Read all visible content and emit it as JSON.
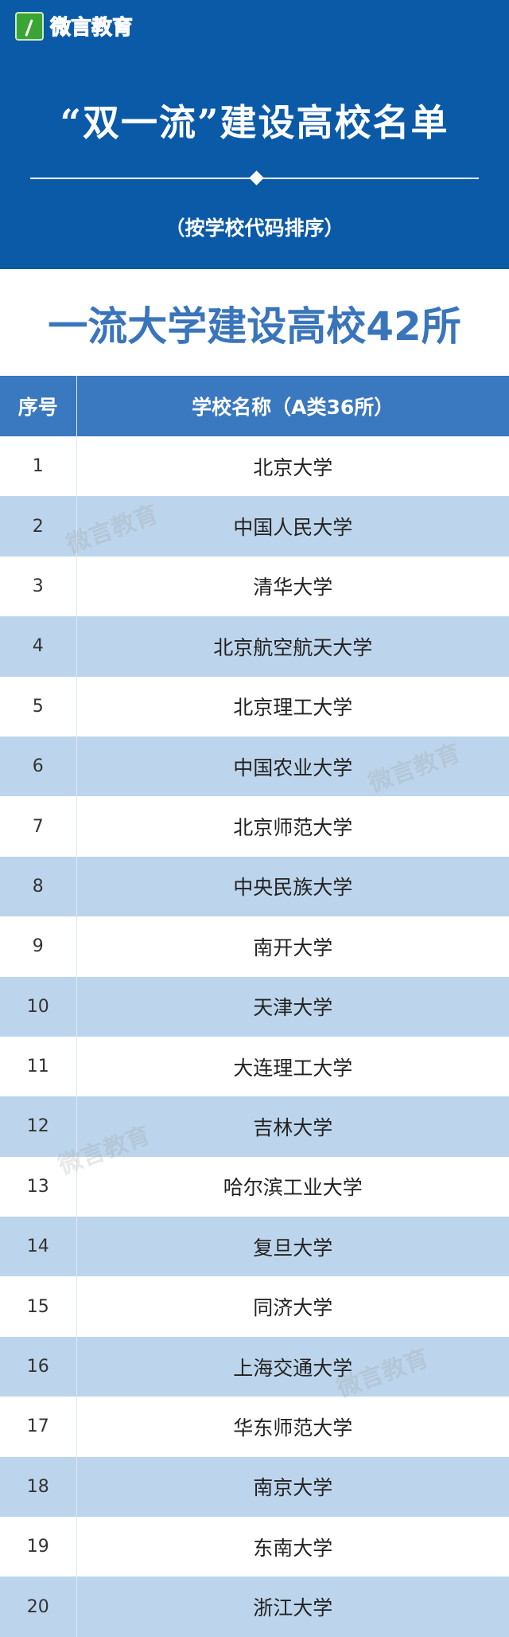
{
  "logo": {
    "text": "微言教育",
    "color": "#3aa535"
  },
  "hero": {
    "title": "“双一流”建设高校名单",
    "subtitle": "（按学校代码排序）",
    "background": "#0b5aa8"
  },
  "section_heading": "一流大学建设高校42所",
  "table": {
    "headers": [
      "序号",
      "学校名称（A类36所）"
    ],
    "rows": [
      {
        "num": "1",
        "name": "北京大学"
      },
      {
        "num": "2",
        "name": "中国人民大学"
      },
      {
        "num": "3",
        "name": "清华大学"
      },
      {
        "num": "4",
        "name": "北京航空航天大学"
      },
      {
        "num": "5",
        "name": "北京理工大学"
      },
      {
        "num": "6",
        "name": "中国农业大学"
      },
      {
        "num": "7",
        "name": "北京师范大学"
      },
      {
        "num": "8",
        "name": "中央民族大学"
      },
      {
        "num": "9",
        "name": "南开大学"
      },
      {
        "num": "10",
        "name": "天津大学"
      },
      {
        "num": "11",
        "name": "大连理工大学"
      },
      {
        "num": "12",
        "name": "吉林大学"
      },
      {
        "num": "13",
        "name": "哈尔滨工业大学"
      },
      {
        "num": "14",
        "name": "复旦大学"
      },
      {
        "num": "15",
        "name": "同济大学"
      },
      {
        "num": "16",
        "name": "上海交通大学"
      },
      {
        "num": "17",
        "name": "华东师范大学"
      },
      {
        "num": "18",
        "name": "南京大学"
      },
      {
        "num": "19",
        "name": "东南大学"
      },
      {
        "num": "20",
        "name": "浙江大学"
      }
    ]
  },
  "watermark": "微言教育"
}
